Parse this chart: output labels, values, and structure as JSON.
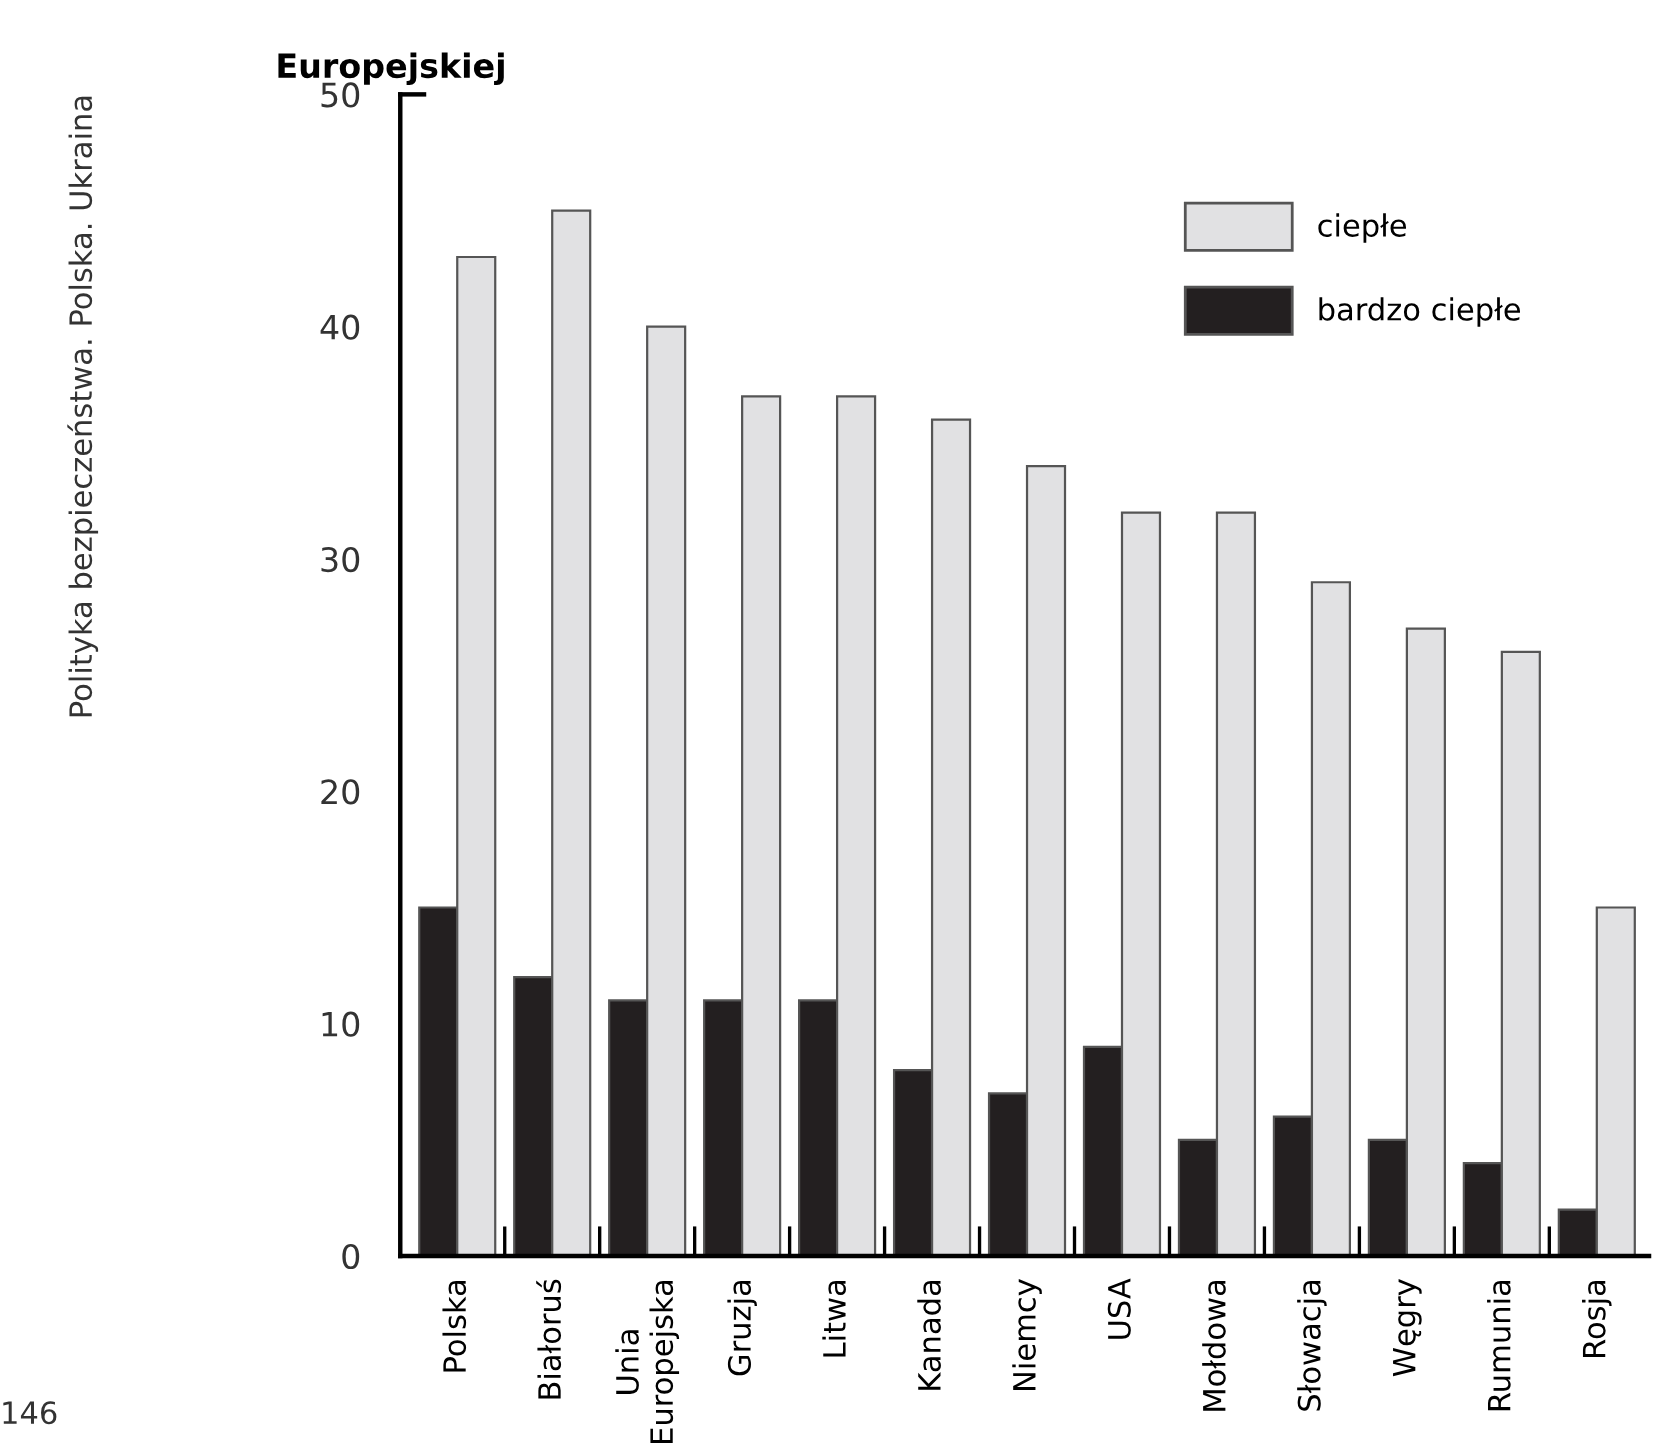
{
  "chart_data": {
    "type": "bar",
    "title": "Europejskiej",
    "categories": [
      "Polska",
      "Białoruś",
      "Unia\nEuropejska",
      "Gruzja",
      "Litwa",
      "Kanada",
      "Niemcy",
      "USA",
      "Mołdowa",
      "Słowacja",
      "Węgry",
      "Rumunia",
      "Rosja"
    ],
    "series": [
      {
        "name": "bardzo ciepłe",
        "color": "#231f20",
        "values": [
          15,
          12,
          11,
          11,
          11,
          8,
          7,
          9,
          5,
          6,
          5,
          4,
          2
        ]
      },
      {
        "name": "ciepłe",
        "color": "#e1e1e3",
        "values": [
          43,
          45,
          40,
          37,
          37,
          36,
          34,
          32,
          32,
          29,
          27,
          26,
          15
        ]
      }
    ],
    "ylim": [
      0,
      50
    ],
    "yticks": [
      0,
      10,
      20,
      30,
      40,
      50
    ],
    "grid": false,
    "legend": "top right",
    "annotations": [
      "Polityka bezpieczeństwa. Polska. Ukraina",
      "146"
    ]
  }
}
